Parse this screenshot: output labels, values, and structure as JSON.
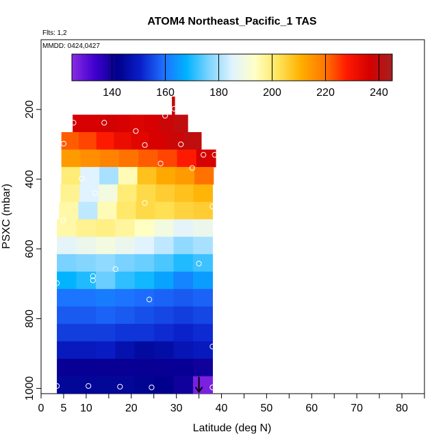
{
  "chart_data": {
    "type": "heatmap",
    "title": "ATOM4 Northeast_Pacific_1 TAS",
    "notes": {
      "flights": "Flts: 1,2",
      "dates": "MMDD: 0424,0427"
    },
    "xlabel": "Latitude (deg N)",
    "ylabel": "PSXC (mbar)",
    "xlim": [
      0,
      85
    ],
    "ylim": [
      1015,
      0
    ],
    "x_ticks": [
      0,
      5,
      10,
      20,
      30,
      40,
      50,
      60,
      70,
      80
    ],
    "x_minor_ticks": [
      15,
      25,
      35,
      45,
      55,
      65,
      75,
      85
    ],
    "y_ticks": [
      200,
      400,
      600,
      800,
      1000
    ],
    "colorbar": {
      "range": [
        125,
        245
      ],
      "ticks": [
        140,
        160,
        180,
        200,
        220,
        240
      ],
      "colors": [
        "#8a2be2",
        "#3f00cf",
        "#00008b",
        "#0a1fc9",
        "#1e6fff",
        "#00b2ff",
        "#7fd4ff",
        "#e0f3ff",
        "#ffffc8",
        "#ffe55c",
        "#ffb000",
        "#ff7a00",
        "#ff1a00",
        "#d40000",
        "#a52020"
      ]
    },
    "rows": [
      {
        "p": [
          163,
          215
        ],
        "lat": [
          29.0,
          29.6
        ],
        "tas": [
          238
        ]
      },
      {
        "p": [
          215,
          265
        ],
        "lat": [
          7.0,
          32.5
        ],
        "tas": [
          236,
          236,
          237,
          236,
          235,
          236,
          238,
          240
        ]
      },
      {
        "p": [
          265,
          315
        ],
        "lat": [
          4.5,
          35.5
        ],
        "tas": [
          222,
          224,
          228,
          232,
          234,
          236,
          238,
          240
        ]
      },
      {
        "p": [
          315,
          365
        ],
        "lat": [
          4.5,
          38.7
        ],
        "tas": [
          214,
          216,
          218,
          220,
          222,
          224,
          228,
          236
        ]
      },
      {
        "p": [
          365,
          415
        ],
        "lat": [
          4.5,
          38.2
        ],
        "tas": [
          200,
          185,
          180,
          195,
          208,
          212,
          214,
          220
        ]
      },
      {
        "p": [
          415,
          465
        ],
        "lat": [
          4.3,
          38.0
        ],
        "tas": [
          198,
          185,
          190,
          200,
          204,
          206,
          208,
          210
        ]
      },
      {
        "p": [
          465,
          515
        ],
        "lat": [
          4.0,
          38.0
        ],
        "tas": [
          196,
          182,
          195,
          201,
          204,
          203,
          205,
          206
        ]
      },
      {
        "p": [
          515,
          565
        ],
        "lat": [
          3.5,
          38.0
        ],
        "tas": [
          196,
          198,
          199,
          197,
          194,
          190,
          186,
          188
        ]
      },
      {
        "p": [
          565,
          615
        ],
        "lat": [
          3.5,
          38.0
        ],
        "tas": [
          186,
          188,
          190,
          188,
          185,
          182,
          178,
          180
        ]
      },
      {
        "p": [
          615,
          665
        ],
        "lat": [
          3.5,
          38.0
        ],
        "tas": [
          176,
          177,
          178,
          176,
          175,
          173,
          170,
          172
        ]
      },
      {
        "p": [
          665,
          715
        ],
        "lat": [
          3.5,
          38.0
        ],
        "tas": [
          168,
          170,
          175,
          171,
          169,
          166,
          162,
          165
        ]
      },
      {
        "p": [
          715,
          765
        ],
        "lat": [
          3.5,
          38.0
        ],
        "tas": [
          160,
          160,
          161,
          160,
          159,
          158,
          157,
          158
        ]
      },
      {
        "p": [
          765,
          815
        ],
        "lat": [
          3.5,
          38.0
        ],
        "tas": [
          157,
          157,
          158,
          157,
          156,
          155,
          154,
          155
        ]
      },
      {
        "p": [
          815,
          865
        ],
        "lat": [
          3.5,
          38.0
        ],
        "tas": [
          154,
          154,
          154,
          153,
          153,
          152,
          151,
          152
        ]
      },
      {
        "p": [
          865,
          915
        ],
        "lat": [
          3.5,
          38.0
        ],
        "tas": [
          149,
          149,
          150,
          147,
          145,
          146,
          148,
          149
        ]
      },
      {
        "p": [
          915,
          965
        ],
        "lat": [
          3.5,
          38.0
        ],
        "tas": [
          141,
          141,
          141,
          141,
          141,
          141,
          141,
          140
        ]
      },
      {
        "p": [
          965,
          1015
        ],
        "lat": [
          3.5,
          38.0
        ],
        "tas": [
          144,
          144,
          144,
          144,
          143,
          142,
          140,
          127
        ]
      }
    ],
    "points": [
      {
        "lat": 7.2,
        "p": 238
      },
      {
        "lat": 14.0,
        "p": 238
      },
      {
        "lat": 21.0,
        "p": 262
      },
      {
        "lat": 27.5,
        "p": 218
      },
      {
        "lat": 29.5,
        "p": 198
      },
      {
        "lat": 5.0,
        "p": 298
      },
      {
        "lat": 23.0,
        "p": 302
      },
      {
        "lat": 31.0,
        "p": 300
      },
      {
        "lat": 36.0,
        "p": 330
      },
      {
        "lat": 38.5,
        "p": 330
      },
      {
        "lat": 26.5,
        "p": 355
      },
      {
        "lat": 33.5,
        "p": 368
      },
      {
        "lat": 9.0,
        "p": 398
      },
      {
        "lat": 12.0,
        "p": 440
      },
      {
        "lat": 23.0,
        "p": 468
      },
      {
        "lat": 38.0,
        "p": 478
      },
      {
        "lat": 5.0,
        "p": 518
      },
      {
        "lat": 35.0,
        "p": 642
      },
      {
        "lat": 16.5,
        "p": 658
      },
      {
        "lat": 11.5,
        "p": 678
      },
      {
        "lat": 11.5,
        "p": 690
      },
      {
        "lat": 3.5,
        "p": 698
      },
      {
        "lat": 24.0,
        "p": 745
      },
      {
        "lat": 38.0,
        "p": 880
      },
      {
        "lat": 3.5,
        "p": 993
      },
      {
        "lat": 10.5,
        "p": 993
      },
      {
        "lat": 17.5,
        "p": 995
      },
      {
        "lat": 24.5,
        "p": 997
      },
      {
        "lat": 38.0,
        "p": 997
      }
    ],
    "arrow": {
      "lat": 35.0,
      "p": 1010
    },
    "grid": false
  }
}
